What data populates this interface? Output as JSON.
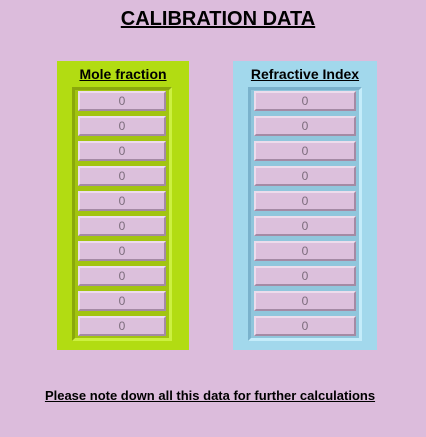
{
  "title": "CALIBRATION DATA",
  "mole_fraction": {
    "label": "Mole fraction",
    "values": [
      "0",
      "0",
      "0",
      "0",
      "0",
      "0",
      "0",
      "0",
      "0",
      "0"
    ]
  },
  "refractive_index": {
    "label": "Refractive Index",
    "values": [
      "0",
      "0",
      "0",
      "0",
      "0",
      "0",
      "0",
      "0",
      "0",
      "0"
    ]
  },
  "note": "Please note down all this data for further calculations",
  "colors": {
    "background": "#dcbcdc",
    "mole_panel": "#b2dc12",
    "ri_panel": "#a2d8ec",
    "cell": "#dcc0dc"
  }
}
